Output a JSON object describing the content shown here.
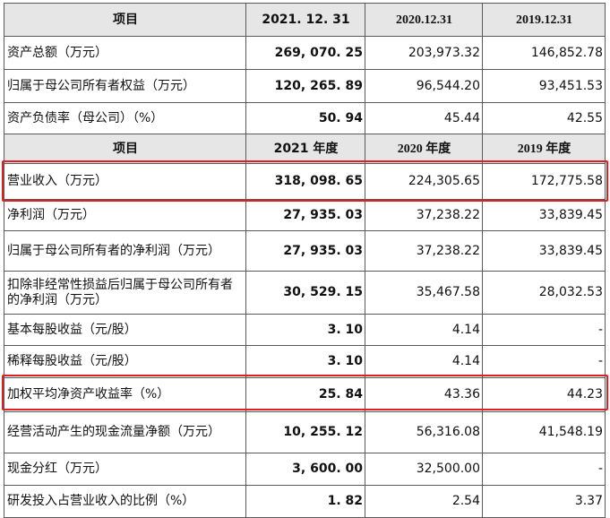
{
  "table": {
    "header1": [
      "项目",
      "2021. 12. 31",
      "2020.12.31",
      "2019.12.31"
    ],
    "rows1": [
      {
        "label": "资产总额（万元）",
        "v2021": "269, 070. 25",
        "v2020": "203,973.32",
        "v2019": "146,852.78"
      },
      {
        "label": "归属于母公司所有者权益（万元）",
        "v2021": "120, 265. 89",
        "v2020": "96,544.20",
        "v2019": "93,451.53"
      },
      {
        "label": "资产负债率（母公司）（%）",
        "v2021": "50. 94",
        "v2020": "45.44",
        "v2019": "42.55"
      }
    ],
    "header2": [
      "项目",
      "2021 年度",
      "2020 年度",
      "2019 年度"
    ],
    "rows2": [
      {
        "label": "营业收入（万元）",
        "v2021": "318, 098. 65",
        "v2020": "224,305.65",
        "v2019": "172,775.58"
      },
      {
        "label": "净利润（万元）",
        "v2021": "27, 935. 03",
        "v2020": "37,238.22",
        "v2019": "33,839.45"
      },
      {
        "label": "归属于母公司所有者的净利润（万元）",
        "v2021": "27, 935. 03",
        "v2020": "37,238.22",
        "v2019": "33,839.45"
      },
      {
        "label": "扣除非经常性损益后归属于母公司所有者的净利润（万元）",
        "v2021": "30, 529. 15",
        "v2020": "35,467.58",
        "v2019": "28,032.53"
      },
      {
        "label": "基本每股收益（元/股）",
        "v2021": "3. 10",
        "v2020": "4.14",
        "v2019": "-"
      },
      {
        "label": "稀释每股收益（元/股）",
        "v2021": "3. 10",
        "v2020": "4.14",
        "v2019": "-"
      },
      {
        "label": "加权平均净资产收益率（%）",
        "v2021": "25. 84",
        "v2020": "43.36",
        "v2019": "44.23"
      },
      {
        "label": "经营活动产生的现金流量净额（万元）",
        "v2021": "10, 255. 12",
        "v2020": "56,316.08",
        "v2019": "41,548.19"
      },
      {
        "label": "现金分红（万元）",
        "v2021": "3, 600. 00",
        "v2020": "32,500.00",
        "v2019": "-"
      },
      {
        "label": "研发投入占营业收入的比例（%）",
        "v2021": "1. 82",
        "v2020": "2.54",
        "v2019": "3.37"
      }
    ]
  },
  "highlight": {
    "color": "#e02020",
    "rows": [
      "营业收入（万元）",
      "加权平均净资产收益率（%）"
    ]
  }
}
